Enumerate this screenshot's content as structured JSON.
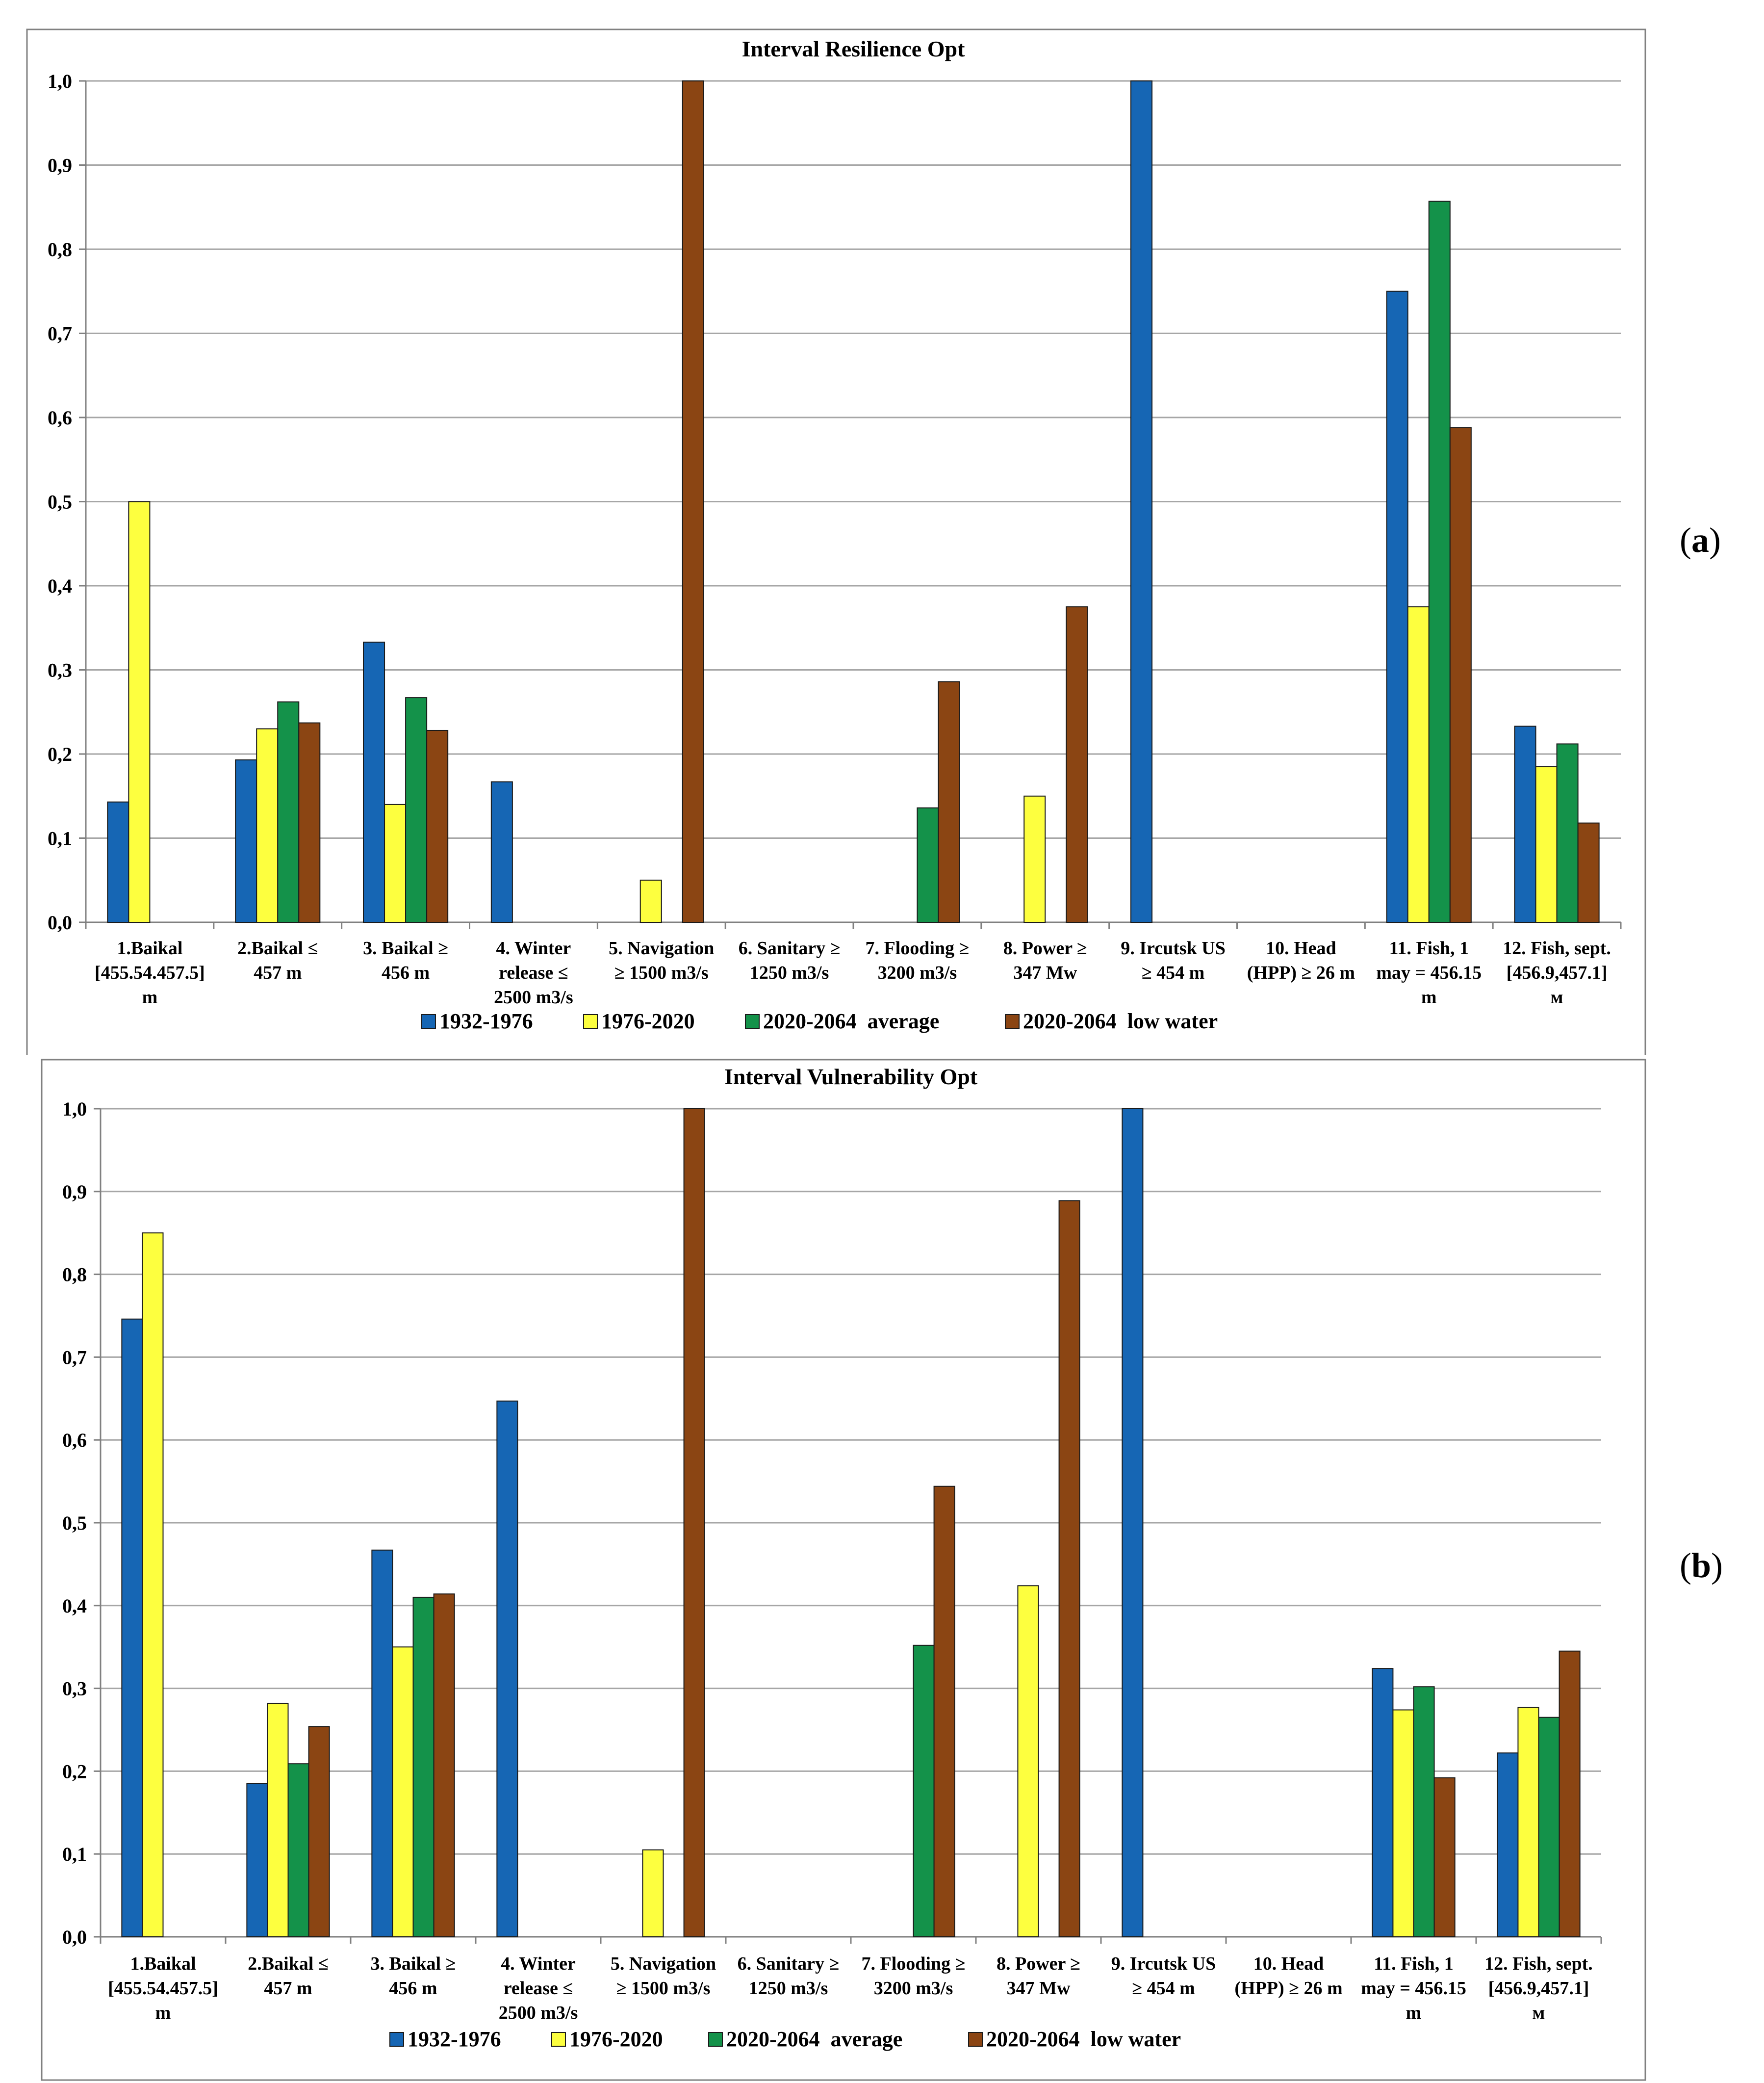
{
  "panel_labels": [
    "a",
    "b"
  ],
  "colors": {
    "s1": "#1666b4",
    "s2": "#fdff3f",
    "s3": "#14924a",
    "s4": "#8b4513",
    "grid": "#a6a6a6",
    "frame": "#808080"
  },
  "chart_data": [
    {
      "type": "bar",
      "title": "Interval  Resilience  Opt",
      "xlabel": "",
      "ylabel": "",
      "ylim": [
        0,
        1
      ],
      "yticks": [
        "0,0",
        "0,1",
        "0,2",
        "0,3",
        "0,4",
        "0,5",
        "0,6",
        "0,7",
        "0,8",
        "0,9",
        "1,0"
      ],
      "grid": true,
      "legend_position": "bottom",
      "categories": [
        [
          "1.Baikal",
          "[455.54.457.5]",
          "m"
        ],
        [
          "2.Baikal ≤",
          "457 m"
        ],
        [
          "3. Baikal ≥",
          "456 m"
        ],
        [
          "4. Winter",
          "release ≤",
          "2500 m3/s"
        ],
        [
          "5. Navigation",
          "≥ 1500 m3/s"
        ],
        [
          "6. Sanitary ≥",
          "1250 m3/s"
        ],
        [
          "7. Flooding ≥",
          "3200 m3/s"
        ],
        [
          "8. Power ≥",
          "347 Mw"
        ],
        [
          "9. Ircutsk US",
          "≥ 454 m"
        ],
        [
          "10. Head",
          "(HPP) ≥ 26 m"
        ],
        [
          "11. Fish, 1",
          "may = 456.15",
          "m"
        ],
        [
          "12. Fish, sept.",
          "[456.9,457.1]",
          "м"
        ]
      ],
      "series": [
        {
          "name": "1932-1976",
          "values": [
            0.143,
            0.193,
            0.333,
            0.167,
            0,
            0,
            0,
            0,
            1.0,
            0,
            0.75,
            0.233
          ]
        },
        {
          "name": "1976-2020",
          "values": [
            0.5,
            0.23,
            0.14,
            0,
            0.05,
            0,
            0,
            0.15,
            0,
            0,
            0.375,
            0.185
          ]
        },
        {
          "name": "2020-2064  average",
          "values": [
            0,
            0.262,
            0.267,
            0,
            0,
            0,
            0.136,
            0,
            0,
            0,
            0.857,
            0.212
          ]
        },
        {
          "name": "2020-2064  low water",
          "values": [
            0,
            0.237,
            0.228,
            0,
            1.0,
            0,
            0.286,
            0.375,
            0,
            0,
            0.588,
            0.118
          ]
        }
      ]
    },
    {
      "type": "bar",
      "title": "Interval  Vulnerability  Opt",
      "xlabel": "",
      "ylabel": "",
      "ylim": [
        0,
        1
      ],
      "yticks": [
        "0,0",
        "0,1",
        "0,2",
        "0,3",
        "0,4",
        "0,5",
        "0,6",
        "0,7",
        "0,8",
        "0,9",
        "1,0"
      ],
      "grid": true,
      "legend_position": "bottom",
      "categories": [
        [
          "1.Baikal",
          "[455.54.457.5]",
          "m"
        ],
        [
          "2.Baikal ≤",
          "457 m"
        ],
        [
          "3. Baikal ≥",
          "456 m"
        ],
        [
          "4. Winter",
          "release ≤",
          "2500 m3/s"
        ],
        [
          "5. Navigation",
          "≥ 1500 m3/s"
        ],
        [
          "6. Sanitary ≥",
          "1250 m3/s"
        ],
        [
          "7. Flooding ≥",
          "3200 m3/s"
        ],
        [
          "8. Power ≥",
          "347 Mw"
        ],
        [
          "9. Ircutsk US",
          "≥ 454 m"
        ],
        [
          "10. Head",
          "(HPP) ≥ 26 m"
        ],
        [
          "11. Fish, 1",
          "may = 456.15",
          "m"
        ],
        [
          "12. Fish, sept.",
          "[456.9,457.1]",
          "м"
        ]
      ],
      "series": [
        {
          "name": "1932-1976",
          "values": [
            0.746,
            0.185,
            0.467,
            0.647,
            0,
            0,
            0,
            0,
            1.0,
            0,
            0.324,
            0.222
          ]
        },
        {
          "name": "1976-2020",
          "values": [
            0.85,
            0.282,
            0.35,
            0,
            0.105,
            0,
            0,
            0.424,
            0,
            0,
            0.274,
            0.277
          ]
        },
        {
          "name": "2020-2064  average",
          "values": [
            0,
            0.209,
            0.41,
            0,
            0,
            0,
            0.352,
            0,
            0,
            0,
            0.302,
            0.265
          ]
        },
        {
          "name": "2020-2064  low water",
          "values": [
            0,
            0.254,
            0.414,
            0,
            1.0,
            0,
            0.544,
            0.889,
            0,
            0,
            0.192,
            0.345
          ]
        }
      ]
    }
  ]
}
